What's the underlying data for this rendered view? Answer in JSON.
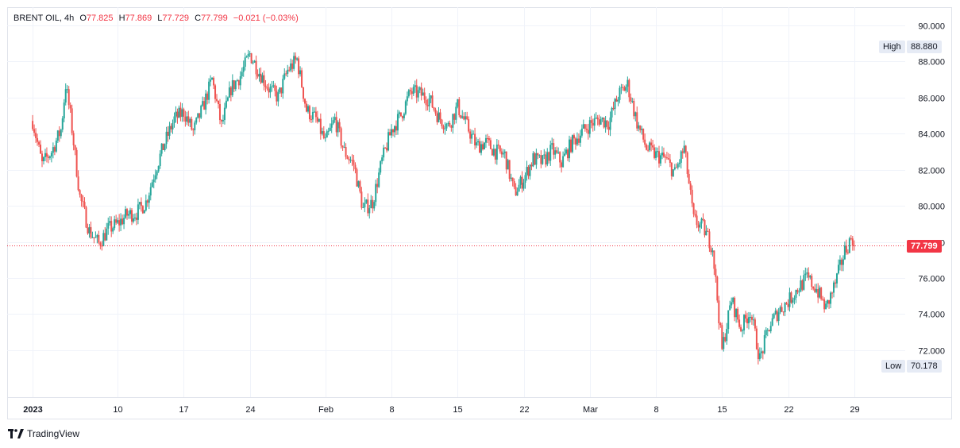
{
  "chart_data": {
    "type": "candlestick",
    "symbol": "BRENT OIL",
    "interval": "4h",
    "ohlc": {
      "open_label": "O",
      "open": "77.825",
      "high_label": "H",
      "high": "77.869",
      "low_label": "L",
      "low": "77.729",
      "close_label": "C",
      "close": "77.799",
      "change": "−0.021 (−0.03%)"
    },
    "y_ticks": [
      "90.000",
      "88.000",
      "86.000",
      "84.000",
      "82.000",
      "80.000",
      "78.000",
      "76.000",
      "74.000",
      "72.000"
    ],
    "ylim": [
      69.4,
      91.0
    ],
    "x_ticks": [
      "2023",
      "10",
      "17",
      "24",
      "Feb",
      "8",
      "15",
      "22",
      "Mar",
      "8",
      "15",
      "22",
      "29"
    ],
    "x_tick_days": [
      0,
      9,
      16,
      23,
      31,
      38,
      45,
      52,
      59,
      66,
      73,
      80,
      87
    ],
    "xlim": [
      -2.7,
      92.4
    ],
    "high_marker": {
      "label": "High",
      "value": "88.880"
    },
    "low_marker": {
      "label": "Low",
      "value": "70.178"
    },
    "last_price": {
      "value": "77.799",
      "numeric": 77.799
    },
    "path": [
      [
        0,
        84.7
      ],
      [
        1,
        82.3
      ],
      [
        2,
        83.0
      ],
      [
        3,
        84.2
      ],
      [
        3.5,
        86.7
      ],
      [
        4,
        85.0
      ],
      [
        5,
        80.5
      ],
      [
        6,
        78.6
      ],
      [
        7,
        77.9
      ],
      [
        8,
        78.7
      ],
      [
        9,
        79.0
      ],
      [
        10,
        79.5
      ],
      [
        11,
        79.6
      ],
      [
        12,
        80.2
      ],
      [
        13,
        82.0
      ],
      [
        14,
        83.5
      ],
      [
        15,
        84.8
      ],
      [
        16,
        85.2
      ],
      [
        17,
        84.1
      ],
      [
        18,
        85.4
      ],
      [
        19,
        87.0
      ],
      [
        20,
        84.4
      ],
      [
        21,
        86.5
      ],
      [
        22,
        87.2
      ],
      [
        23,
        88.4
      ],
      [
        24,
        87.4
      ],
      [
        25,
        86.5
      ],
      [
        26,
        86.0
      ],
      [
        27,
        87.5
      ],
      [
        28,
        88.1
      ],
      [
        29,
        85.3
      ],
      [
        30,
        84.8
      ],
      [
        31,
        83.5
      ],
      [
        32,
        84.8
      ],
      [
        33,
        83.0
      ],
      [
        34,
        82.3
      ],
      [
        35,
        79.8
      ],
      [
        36,
        80.2
      ],
      [
        37,
        82.5
      ],
      [
        38,
        84.2
      ],
      [
        39,
        85.0
      ],
      [
        40,
        86.3
      ],
      [
        41,
        86.2
      ],
      [
        42,
        85.9
      ],
      [
        43,
        84.9
      ],
      [
        44,
        84.4
      ],
      [
        45,
        85.5
      ],
      [
        46,
        84.4
      ],
      [
        47,
        83.3
      ],
      [
        48,
        83.5
      ],
      [
        49,
        83.0
      ],
      [
        50,
        82.8
      ],
      [
        51,
        80.7
      ],
      [
        52,
        81.5
      ],
      [
        53,
        82.6
      ],
      [
        54,
        82.4
      ],
      [
        55,
        83.1
      ],
      [
        56,
        82.4
      ],
      [
        57,
        83.4
      ],
      [
        58,
        84.0
      ],
      [
        59,
        84.5
      ],
      [
        60,
        84.8
      ],
      [
        61,
        84.6
      ],
      [
        62,
        86.1
      ],
      [
        63,
        86.7
      ],
      [
        64,
        84.6
      ],
      [
        65,
        83.2
      ],
      [
        66,
        82.8
      ],
      [
        67,
        82.6
      ],
      [
        68,
        81.8
      ],
      [
        69,
        83.2
      ],
      [
        70,
        79.2
      ],
      [
        71,
        78.8
      ],
      [
        72,
        77.7
      ],
      [
        73,
        72.0
      ],
      [
        74,
        74.8
      ],
      [
        75,
        73.2
      ],
      [
        76,
        74.2
      ],
      [
        77,
        71.5
      ],
      [
        78,
        73.3
      ],
      [
        79,
        74.2
      ],
      [
        80,
        74.7
      ],
      [
        81,
        75.4
      ],
      [
        82,
        76.0
      ],
      [
        83,
        75.4
      ],
      [
        84,
        74.3
      ],
      [
        85,
        75.7
      ],
      [
        86,
        77.5
      ],
      [
        86.8,
        78.3
      ],
      [
        87,
        77.8
      ]
    ]
  },
  "brand": {
    "name": "TradingView"
  },
  "colors": {
    "up": "#26a69a",
    "down": "#ef5350",
    "grid": "#f0f3fa",
    "last_price": "#f23645",
    "axis_text": "#131722"
  }
}
